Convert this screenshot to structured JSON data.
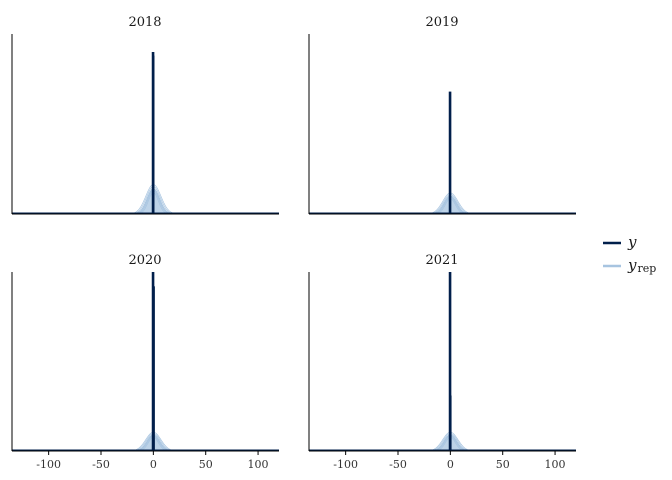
{
  "chart_data": {
    "type": "area",
    "description_style": "faceted posterior predictive check (observed y vs replicated y_rep)",
    "xlim": [
      -135,
      120
    ],
    "x_ticks": [
      -100,
      -50,
      0,
      50,
      100
    ],
    "x_tick_labels": [
      "-100",
      "-50",
      "0",
      "50",
      "100"
    ],
    "legend": {
      "placement": "right",
      "items": [
        {
          "key": "y",
          "label": "y",
          "sub": "",
          "color": "#011f4b"
        },
        {
          "key": "y_rep",
          "label": "y",
          "sub": "rep",
          "color": "#a7c4e0"
        }
      ]
    },
    "panels": [
      {
        "title": "2018",
        "y_peak": 0.9,
        "y_secondary": [
          {
            "x": 0.3,
            "v": 0.88
          }
        ],
        "yrep_peak": 0.14,
        "yrep_spread": 6
      },
      {
        "title": "2019",
        "y_peak": 0.68,
        "y_secondary": [],
        "yrep_peak": 0.1,
        "yrep_spread": 6
      },
      {
        "title": "2020",
        "y_peak": 1.0,
        "y_secondary": [
          {
            "x": 0.7,
            "v": 0.92
          }
        ],
        "yrep_peak": 0.09,
        "yrep_spread": 6
      },
      {
        "title": "2021",
        "y_peak": 1.0,
        "y_secondary": [
          {
            "x": 0.4,
            "v": 0.31
          }
        ],
        "yrep_peak": 0.09,
        "yrep_spread": 6
      }
    ]
  },
  "colors": {
    "y": "#011f4b",
    "y_rep": "#a7c4e0",
    "axis": "#000000"
  }
}
